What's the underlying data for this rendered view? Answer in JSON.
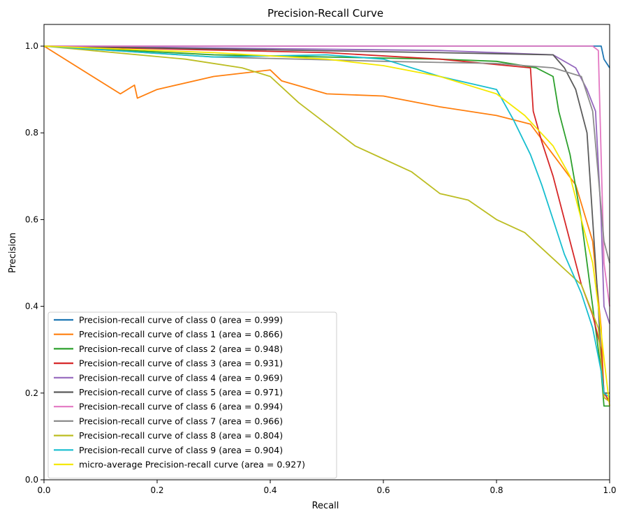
{
  "chart_data": {
    "type": "line",
    "title": "Precision-Recall Curve",
    "xlabel": "Recall",
    "ylabel": "Precision",
    "xlim": [
      0.0,
      1.0
    ],
    "ylim": [
      0.0,
      1.05
    ],
    "x_ticks": [
      "0.0",
      "0.2",
      "0.4",
      "0.6",
      "0.8",
      "1.0"
    ],
    "x_tick_values": [
      0.0,
      0.2,
      0.4,
      0.6,
      0.8,
      1.0
    ],
    "y_ticks": [
      "0.0",
      "0.2",
      "0.4",
      "0.6",
      "0.8",
      "1.0"
    ],
    "y_tick_values": [
      0.0,
      0.2,
      0.4,
      0.6,
      0.8,
      1.0
    ],
    "grid": false,
    "legend_position": "lower-left",
    "series": [
      {
        "name": "Precision-recall curve of class 0 (area = 0.999)",
        "color": "#1f77b4",
        "points": [
          [
            0,
            1
          ],
          [
            0.985,
            1
          ],
          [
            0.99,
            0.97
          ],
          [
            1,
            0.95
          ]
        ]
      },
      {
        "name": "Precision-recall curve of class 1 (area = 0.866)",
        "color": "#ff7f0e",
        "points": [
          [
            0,
            1
          ],
          [
            0.135,
            0.89
          ],
          [
            0.16,
            0.91
          ],
          [
            0.165,
            0.88
          ],
          [
            0.2,
            0.9
          ],
          [
            0.3,
            0.93
          ],
          [
            0.4,
            0.945
          ],
          [
            0.42,
            0.92
          ],
          [
            0.5,
            0.89
          ],
          [
            0.6,
            0.885
          ],
          [
            0.7,
            0.86
          ],
          [
            0.8,
            0.84
          ],
          [
            0.86,
            0.82
          ],
          [
            0.9,
            0.75
          ],
          [
            0.94,
            0.68
          ],
          [
            0.97,
            0.55
          ],
          [
            0.985,
            0.35
          ],
          [
            0.99,
            0.19
          ],
          [
            1,
            0.18
          ]
        ]
      },
      {
        "name": "Precision-recall curve of class 2 (area = 0.948)",
        "color": "#2ca02c",
        "points": [
          [
            0,
            1
          ],
          [
            0.3,
            0.98
          ],
          [
            0.5,
            0.975
          ],
          [
            0.7,
            0.97
          ],
          [
            0.8,
            0.965
          ],
          [
            0.87,
            0.95
          ],
          [
            0.9,
            0.93
          ],
          [
            0.91,
            0.85
          ],
          [
            0.93,
            0.75
          ],
          [
            0.95,
            0.6
          ],
          [
            0.97,
            0.4
          ],
          [
            0.985,
            0.25
          ],
          [
            0.99,
            0.17
          ],
          [
            1,
            0.17
          ]
        ]
      },
      {
        "name": "Precision-recall curve of class 3 (area = 0.931)",
        "color": "#d62728",
        "points": [
          [
            0,
            1
          ],
          [
            0.5,
            0.985
          ],
          [
            0.7,
            0.97
          ],
          [
            0.86,
            0.95
          ],
          [
            0.865,
            0.85
          ],
          [
            0.88,
            0.78
          ],
          [
            0.9,
            0.7
          ],
          [
            0.92,
            0.6
          ],
          [
            0.95,
            0.45
          ],
          [
            0.97,
            0.38
          ],
          [
            0.985,
            0.3
          ],
          [
            0.99,
            0.2
          ],
          [
            1,
            0.18
          ]
        ]
      },
      {
        "name": "Precision-recall curve of class 4 (area = 0.969)",
        "color": "#9467bd",
        "points": [
          [
            0,
            1
          ],
          [
            0.7,
            0.99
          ],
          [
            0.9,
            0.98
          ],
          [
            0.94,
            0.95
          ],
          [
            0.96,
            0.9
          ],
          [
            0.975,
            0.85
          ],
          [
            0.985,
            0.6
          ],
          [
            0.99,
            0.4
          ],
          [
            1,
            0.36
          ]
        ]
      },
      {
        "name": "Precision-recall curve of class 5 (area = 0.971)",
        "color": "#5b5b5b",
        "points": [
          [
            0,
            1
          ],
          [
            0.7,
            0.985
          ],
          [
            0.9,
            0.98
          ],
          [
            0.92,
            0.95
          ],
          [
            0.94,
            0.9
          ],
          [
            0.96,
            0.8
          ],
          [
            0.97,
            0.6
          ],
          [
            0.98,
            0.4
          ],
          [
            0.985,
            0.27
          ],
          [
            0.99,
            0.2
          ],
          [
            1,
            0.2
          ]
        ]
      },
      {
        "name": "Precision-recall curve of class 6 (area = 0.994)",
        "color": "#e377c2",
        "points": [
          [
            0,
            1
          ],
          [
            0.97,
            1
          ],
          [
            0.98,
            0.99
          ],
          [
            0.99,
            0.5
          ],
          [
            1,
            0.4
          ]
        ]
      },
      {
        "name": "Precision-recall curve of class 7 (area = 0.966)",
        "color": "#8c8c8c",
        "points": [
          [
            0,
            1
          ],
          [
            0.3,
            0.975
          ],
          [
            0.6,
            0.965
          ],
          [
            0.8,
            0.96
          ],
          [
            0.9,
            0.95
          ],
          [
            0.95,
            0.93
          ],
          [
            0.97,
            0.85
          ],
          [
            0.98,
            0.7
          ],
          [
            0.99,
            0.55
          ],
          [
            1,
            0.5
          ]
        ]
      },
      {
        "name": "Precision-recall curve of class 8 (area = 0.804)",
        "color": "#bcbd22",
        "points": [
          [
            0,
            1
          ],
          [
            0.25,
            0.97
          ],
          [
            0.35,
            0.95
          ],
          [
            0.4,
            0.93
          ],
          [
            0.45,
            0.87
          ],
          [
            0.5,
            0.82
          ],
          [
            0.55,
            0.77
          ],
          [
            0.6,
            0.74
          ],
          [
            0.65,
            0.71
          ],
          [
            0.7,
            0.66
          ],
          [
            0.75,
            0.645
          ],
          [
            0.8,
            0.6
          ],
          [
            0.85,
            0.57
          ],
          [
            0.9,
            0.51
          ],
          [
            0.95,
            0.45
          ],
          [
            0.98,
            0.35
          ],
          [
            0.99,
            0.19
          ],
          [
            1,
            0.18
          ]
        ]
      },
      {
        "name": "Precision-recall curve of class 9 (area = 0.904)",
        "color": "#17becf",
        "points": [
          [
            0,
            1
          ],
          [
            0.3,
            0.975
          ],
          [
            0.5,
            0.98
          ],
          [
            0.6,
            0.97
          ],
          [
            0.7,
            0.93
          ],
          [
            0.8,
            0.9
          ],
          [
            0.83,
            0.83
          ],
          [
            0.86,
            0.75
          ],
          [
            0.88,
            0.68
          ],
          [
            0.9,
            0.6
          ],
          [
            0.92,
            0.52
          ],
          [
            0.95,
            0.43
          ],
          [
            0.97,
            0.35
          ],
          [
            0.985,
            0.25
          ],
          [
            0.99,
            0.2
          ],
          [
            1,
            0.19
          ]
        ]
      },
      {
        "name": "micro-average Precision-recall curve (area = 0.927)",
        "color": "#f5e800",
        "points": [
          [
            0,
            1
          ],
          [
            0.3,
            0.985
          ],
          [
            0.5,
            0.97
          ],
          [
            0.6,
            0.955
          ],
          [
            0.7,
            0.93
          ],
          [
            0.8,
            0.89
          ],
          [
            0.85,
            0.84
          ],
          [
            0.9,
            0.77
          ],
          [
            0.93,
            0.7
          ],
          [
            0.95,
            0.6
          ],
          [
            0.97,
            0.5
          ],
          [
            0.98,
            0.4
          ],
          [
            0.99,
            0.28
          ],
          [
            1,
            0.17
          ]
        ]
      }
    ]
  }
}
